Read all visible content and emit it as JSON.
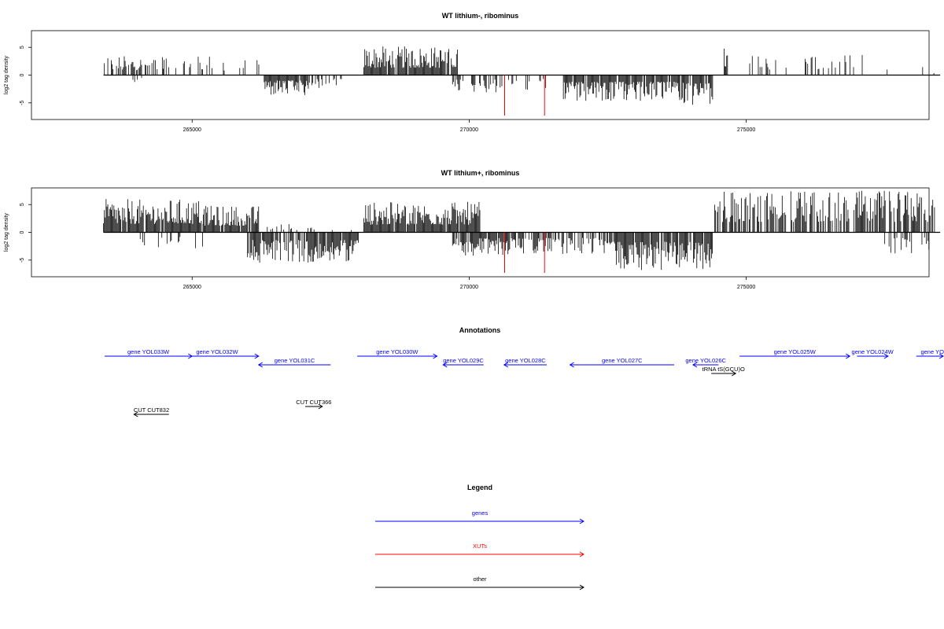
{
  "chart_data": [
    {
      "type": "bar",
      "title": "WT lithium-, ribominus",
      "ylabel": "log2 tag density",
      "xlabel": "",
      "xlim": [
        262100,
        278300
      ],
      "ylim": [
        -8,
        8
      ],
      "xticks": [
        265000,
        270000,
        275000
      ],
      "yticks": [
        5,
        0,
        -5
      ],
      "baseline": {
        "from": 263400,
        "to": 278500
      },
      "plus_strand_regions": [
        {
          "from": 263400,
          "to": 264500,
          "density": 0.55,
          "max": 3.5
        },
        {
          "from": 264500,
          "to": 265500,
          "density": 0.25,
          "max": 3.8
        },
        {
          "from": 265500,
          "to": 266300,
          "density": 0.2,
          "max": 3.0
        },
        {
          "from": 268100,
          "to": 269800,
          "density": 0.95,
          "max": 5.2
        },
        {
          "from": 274600,
          "to": 274700,
          "density": 0.5,
          "max": 5.0
        },
        {
          "from": 275000,
          "to": 275800,
          "density": 0.15,
          "max": 3.6
        },
        {
          "from": 276000,
          "to": 277100,
          "density": 0.3,
          "max": 3.7
        },
        {
          "from": 277200,
          "to": 278400,
          "density": 0.06,
          "max": 1.5
        }
      ],
      "minus_strand_regions": [
        {
          "from": 263900,
          "to": 264100,
          "density": 0.15,
          "max": -1.6
        },
        {
          "from": 266300,
          "to": 267100,
          "density": 0.9,
          "max": -3.8
        },
        {
          "from": 267100,
          "to": 267700,
          "density": 0.35,
          "max": -2.5
        },
        {
          "from": 269700,
          "to": 270600,
          "density": 0.5,
          "max": -3.2
        },
        {
          "from": 270600,
          "to": 271400,
          "density": 0.3,
          "max": -2.8
        },
        {
          "from": 271700,
          "to": 273800,
          "density": 0.9,
          "max": -4.8
        },
        {
          "from": 273800,
          "to": 274400,
          "density": 0.95,
          "max": -5.5
        }
      ],
      "xut_peaks": [
        {
          "x": 270640,
          "value": -7.3
        },
        {
          "x": 271360,
          "value": -7.3
        }
      ]
    },
    {
      "type": "bar",
      "title": "WT lithium+, ribominus",
      "ylabel": "log2 tag density",
      "xlabel": "",
      "xlim": [
        262100,
        278300
      ],
      "ylim": [
        -8,
        8
      ],
      "xticks": [
        265000,
        270000,
        275000
      ],
      "yticks": [
        5,
        0,
        -5
      ],
      "baseline": {
        "from": 263400,
        "to": 278500
      },
      "plus_strand_regions": [
        {
          "from": 263400,
          "to": 265200,
          "density": 0.9,
          "max": 6.0
        },
        {
          "from": 265200,
          "to": 266200,
          "density": 0.9,
          "max": 4.8
        },
        {
          "from": 266200,
          "to": 268100,
          "density": 0.12,
          "max": 1.5
        },
        {
          "from": 268100,
          "to": 270200,
          "density": 0.95,
          "max": 5.5
        },
        {
          "from": 274400,
          "to": 278400,
          "density": 0.7,
          "max": 7.5
        }
      ],
      "minus_strand_regions": [
        {
          "from": 264000,
          "to": 265200,
          "density": 0.25,
          "max": -3.0
        },
        {
          "from": 266000,
          "to": 268000,
          "density": 0.85,
          "max": -5.5
        },
        {
          "from": 269700,
          "to": 271000,
          "density": 0.85,
          "max": -4.2
        },
        {
          "from": 271000,
          "to": 272500,
          "density": 0.55,
          "max": -4.0
        },
        {
          "from": 272500,
          "to": 274400,
          "density": 0.9,
          "max": -6.8
        },
        {
          "from": 277500,
          "to": 278300,
          "density": 0.4,
          "max": -3.8
        }
      ],
      "xut_peaks": [
        {
          "x": 270640,
          "value": -7.3
        },
        {
          "x": 271360,
          "value": -7.3
        }
      ]
    }
  ],
  "annotations": {
    "title": "Annotations",
    "colors": {
      "gene": "#0000ff",
      "other": "#000000"
    },
    "features": [
      {
        "label": "gene YOL033W",
        "from": 263420,
        "to": 265000,
        "row": 0,
        "strand": "+",
        "kind": "gene"
      },
      {
        "label": "gene YOL032W",
        "from": 264000,
        "to": 266200,
        "row": 0,
        "strand": "+",
        "kind": "gene",
        "label_x": 265450
      },
      {
        "label": "gene YOL031C",
        "from": 266200,
        "to": 267500,
        "row": 1,
        "strand": "-",
        "kind": "gene"
      },
      {
        "label": "gene YOL030W",
        "from": 267980,
        "to": 269420,
        "row": 0,
        "strand": "+",
        "kind": "gene"
      },
      {
        "label": "gene YOL029C",
        "from": 269530,
        "to": 270260,
        "row": 1,
        "strand": "-",
        "kind": "gene"
      },
      {
        "label": "gene YOL028C",
        "from": 270630,
        "to": 271400,
        "row": 1,
        "strand": "-",
        "kind": "gene"
      },
      {
        "label": "gene YOL027C",
        "from": 271820,
        "to": 273700,
        "row": 1,
        "strand": "-",
        "kind": "gene"
      },
      {
        "label": "gene YOL026C",
        "from": 274040,
        "to": 274500,
        "row": 1,
        "strand": "-",
        "kind": "gene"
      },
      {
        "label": "gene YOL025W",
        "from": 274880,
        "to": 276870,
        "row": 0,
        "strand": "+",
        "kind": "gene"
      },
      {
        "label": "gene YOL024W",
        "from": 277000,
        "to": 277560,
        "row": 0,
        "strand": "+",
        "kind": "gene"
      },
      {
        "label": "gene YO",
        "from": 278070,
        "to": 279300,
        "row": 0,
        "strand": "+",
        "kind": "gene",
        "label_x": 278360
      },
      {
        "label": "tRNA tS(GCU)O",
        "from": 274370,
        "to": 274810,
        "row": 2,
        "strand": "+",
        "kind": "other"
      },
      {
        "label": "CUT CUT832",
        "from": 263950,
        "to": 264580,
        "row": 4,
        "strand": "-",
        "kind": "other"
      },
      {
        "label": "CUT CUT366",
        "from": 267040,
        "to": 267350,
        "row": 3,
        "strand": "+",
        "kind": "other"
      }
    ]
  },
  "legend": {
    "title": "Legend",
    "items": [
      {
        "label": "genes",
        "color": "#0000ff"
      },
      {
        "label": "XUTs",
        "color": "#ff0000"
      },
      {
        "label": "other",
        "color": "#000000"
      }
    ]
  }
}
